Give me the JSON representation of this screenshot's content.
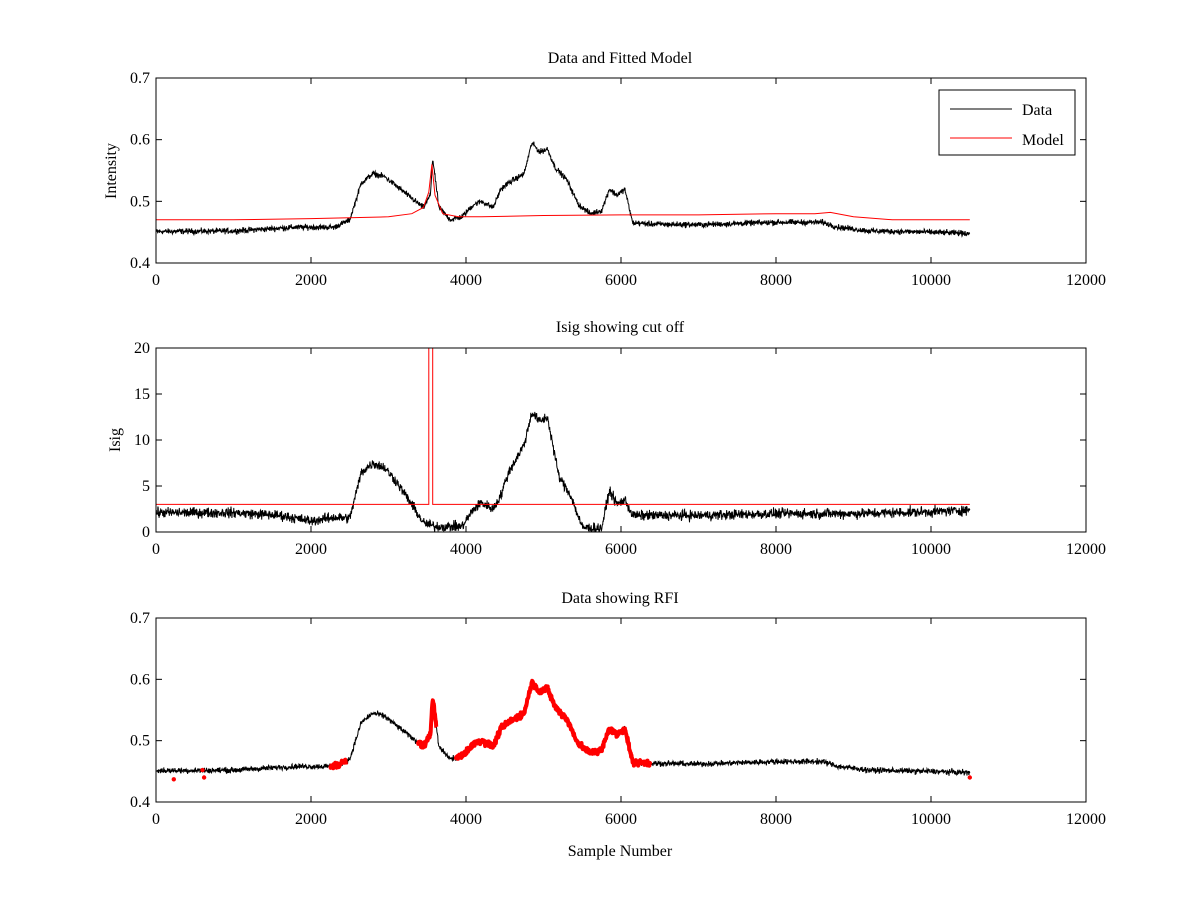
{
  "colors": {
    "data": "#000000",
    "model": "#ff0000",
    "rfi": "#ff0000",
    "axes": "#000000",
    "background": "#ffffff"
  },
  "xlabel": "Sample Number",
  "chart_data": [
    {
      "type": "line",
      "title": "Data and Fitted Model",
      "ylabel": "Intensity",
      "xlabel": "",
      "xlim": [
        0,
        12000
      ],
      "ylim": [
        0.4,
        0.7
      ],
      "xticks": [
        "0",
        "2000",
        "4000",
        "6000",
        "8000",
        "10000",
        "12000"
      ],
      "yticks": [
        "0.4",
        "0.5",
        "0.6",
        "0.7"
      ],
      "legend": {
        "position": "top-right",
        "entries": [
          "Data",
          "Model"
        ]
      },
      "grid": false,
      "series": [
        {
          "name": "Data",
          "color": "#000000",
          "noise": 0.005,
          "x": [
            0,
            1000,
            1800,
            2300,
            2500,
            2650,
            2800,
            2950,
            3100,
            3300,
            3450,
            3540,
            3570,
            3650,
            3800,
            3950,
            4100,
            4200,
            4350,
            4450,
            4550,
            4750,
            4850,
            4950,
            5050,
            5150,
            5300,
            5450,
            5600,
            5750,
            5850,
            5950,
            6050,
            6150,
            6400,
            7000,
            8000,
            8600,
            8800,
            9200,
            10000,
            10500
          ],
          "values": [
            0.451,
            0.452,
            0.458,
            0.458,
            0.47,
            0.53,
            0.545,
            0.54,
            0.525,
            0.505,
            0.49,
            0.51,
            0.57,
            0.49,
            0.47,
            0.475,
            0.495,
            0.5,
            0.49,
            0.52,
            0.53,
            0.545,
            0.595,
            0.58,
            0.585,
            0.555,
            0.535,
            0.495,
            0.48,
            0.485,
            0.52,
            0.51,
            0.52,
            0.465,
            0.463,
            0.462,
            0.466,
            0.466,
            0.458,
            0.452,
            0.45,
            0.448
          ]
        },
        {
          "name": "Model",
          "color": "#ff0000",
          "x": [
            0,
            1000,
            2000,
            3000,
            3300,
            3450,
            3520,
            3560,
            3600,
            3700,
            3900,
            4200,
            5000,
            6000,
            7000,
            8000,
            8500,
            8700,
            9000,
            9500,
            10500
          ],
          "values": [
            0.47,
            0.47,
            0.472,
            0.475,
            0.48,
            0.49,
            0.515,
            0.56,
            0.51,
            0.48,
            0.475,
            0.475,
            0.477,
            0.478,
            0.478,
            0.48,
            0.48,
            0.482,
            0.475,
            0.47,
            0.47
          ]
        }
      ]
    },
    {
      "type": "line",
      "title": "Isig showing cut off",
      "ylabel": "Isig",
      "xlabel": "",
      "xlim": [
        0,
        12000
      ],
      "ylim": [
        0,
        20
      ],
      "xticks": [
        "0",
        "2000",
        "4000",
        "6000",
        "8000",
        "10000",
        "12000"
      ],
      "yticks": [
        "0",
        "5",
        "10",
        "15",
        "20"
      ],
      "grid": false,
      "series": [
        {
          "name": "Isig",
          "color": "#000000",
          "noise": 0.6,
          "x": [
            0,
            1000,
            1600,
            2000,
            2300,
            2500,
            2650,
            2800,
            2950,
            3100,
            3300,
            3450,
            3600,
            3800,
            3950,
            4100,
            4200,
            4350,
            4450,
            4550,
            4750,
            4850,
            4950,
            5050,
            5200,
            5350,
            5500,
            5750,
            5850,
            5950,
            6050,
            6150,
            7000,
            8000,
            9000,
            10000,
            10500
          ],
          "values": [
            2.1,
            2.1,
            1.8,
            1.2,
            1.6,
            1.5,
            6.5,
            7.5,
            7.0,
            5.5,
            3.0,
            1.0,
            0.6,
            0.6,
            0.6,
            2.5,
            3.2,
            2.5,
            4.0,
            6.5,
            9.5,
            13.0,
            12.0,
            12.5,
            6.0,
            4.0,
            0.5,
            0.4,
            4.5,
            3.0,
            3.5,
            1.8,
            1.8,
            2.0,
            2.0,
            2.2,
            2.4
          ]
        },
        {
          "name": "Cut off",
          "color": "#ff0000",
          "x": [
            0,
            3520,
            3520,
            3570,
            3570,
            10500
          ],
          "values": [
            3.0,
            3.0,
            20.0,
            20.0,
            3.0,
            3.0
          ]
        }
      ]
    },
    {
      "type": "line",
      "title": "Data showing RFI",
      "ylabel": "",
      "xlabel": "Sample Number",
      "xlim": [
        0,
        12000
      ],
      "ylim": [
        0.4,
        0.7
      ],
      "xticks": [
        "0",
        "2000",
        "4000",
        "6000",
        "8000",
        "10000",
        "12000"
      ],
      "yticks": [
        "0.4",
        "0.5",
        "0.6",
        "0.7"
      ],
      "grid": false,
      "series": [
        {
          "name": "Data",
          "color": "#000000",
          "noise": 0.005,
          "x": [
            0,
            1000,
            1800,
            2300,
            2500,
            2650,
            2800,
            2950,
            3100,
            3300,
            3450,
            3540,
            3570,
            3650,
            3800,
            3950,
            4100,
            4200,
            4350,
            4450,
            4550,
            4750,
            4850,
            4950,
            5050,
            5150,
            5300,
            5450,
            5600,
            5750,
            5850,
            5950,
            6050,
            6150,
            6400,
            7000,
            8000,
            8600,
            8800,
            9200,
            10000,
            10500
          ],
          "values": [
            0.451,
            0.452,
            0.458,
            0.458,
            0.47,
            0.53,
            0.545,
            0.54,
            0.525,
            0.505,
            0.49,
            0.51,
            0.57,
            0.49,
            0.47,
            0.475,
            0.495,
            0.5,
            0.49,
            0.52,
            0.53,
            0.545,
            0.595,
            0.58,
            0.585,
            0.555,
            0.535,
            0.495,
            0.48,
            0.485,
            0.52,
            0.51,
            0.52,
            0.465,
            0.463,
            0.462,
            0.466,
            0.466,
            0.458,
            0.452,
            0.45,
            0.448
          ]
        },
        {
          "name": "RFI",
          "color": "#ff0000",
          "flagged_ranges": [
            [
              2250,
              2450
            ],
            [
              3380,
              3620
            ],
            [
              3870,
              6380
            ]
          ],
          "isolated_points": [
            [
              230,
              0.437
            ],
            [
              620,
              0.44
            ],
            [
              600,
              0.452
            ],
            [
              10500,
              0.44
            ]
          ]
        }
      ]
    }
  ]
}
